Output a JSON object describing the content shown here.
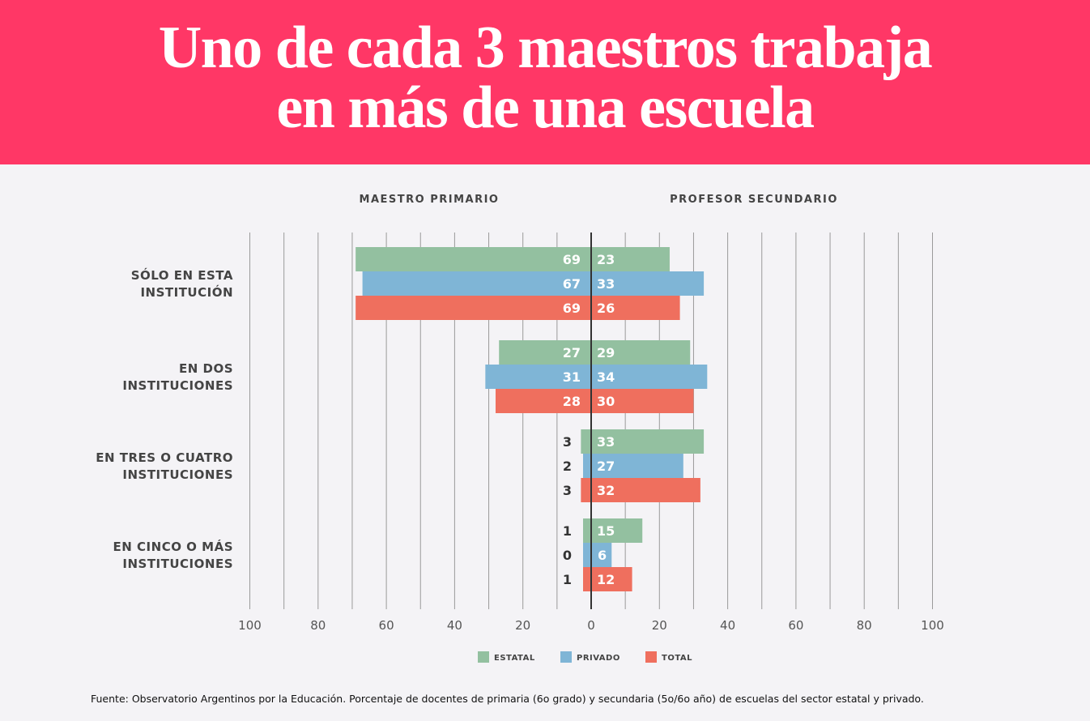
{
  "header": {
    "title_line1": "Uno de cada 3 maestros trabaja",
    "title_line2": "en más de una escuela"
  },
  "chart_data": {
    "type": "bar",
    "orientation": "horizontal-diverging",
    "left_panel_title": "MAESTRO PRIMARIO",
    "right_panel_title": "PROFESOR SECUNDARIO",
    "categories": [
      [
        "SÓLO EN ESTA",
        "INSTITUCIÓN"
      ],
      [
        "EN DOS",
        "INSTITUCIONES"
      ],
      [
        "EN TRES O CUATRO",
        "INSTITUCIONES"
      ],
      [
        "EN CINCO O MÁS",
        "INSTITUCIONES"
      ]
    ],
    "series": [
      {
        "name": "ESTATAL",
        "color": "#93c0a0",
        "primario": [
          69,
          27,
          3,
          1
        ],
        "secundario": [
          23,
          29,
          33,
          15
        ]
      },
      {
        "name": "PRIVADO",
        "color": "#7fb5d6",
        "primario": [
          67,
          31,
          2,
          0
        ],
        "secundario": [
          33,
          34,
          27,
          6
        ]
      },
      {
        "name": "TOTAL",
        "color": "#ef6f5e",
        "primario": [
          69,
          28,
          3,
          1
        ],
        "secundario": [
          26,
          30,
          32,
          12
        ]
      }
    ],
    "xlim": [
      -100,
      100
    ],
    "x_tick_labels": [
      "100",
      "80",
      "60",
      "40",
      "20",
      "0",
      "20",
      "40",
      "60",
      "80",
      "100"
    ],
    "grid": true,
    "legend": "bottom-center"
  },
  "source": "Fuente: Observatorio Argentinos por la Educación. Porcentaje de docentes de primaria (6o grado) y secundaria (5o/6o año) de escuelas del sector estatal y privado."
}
